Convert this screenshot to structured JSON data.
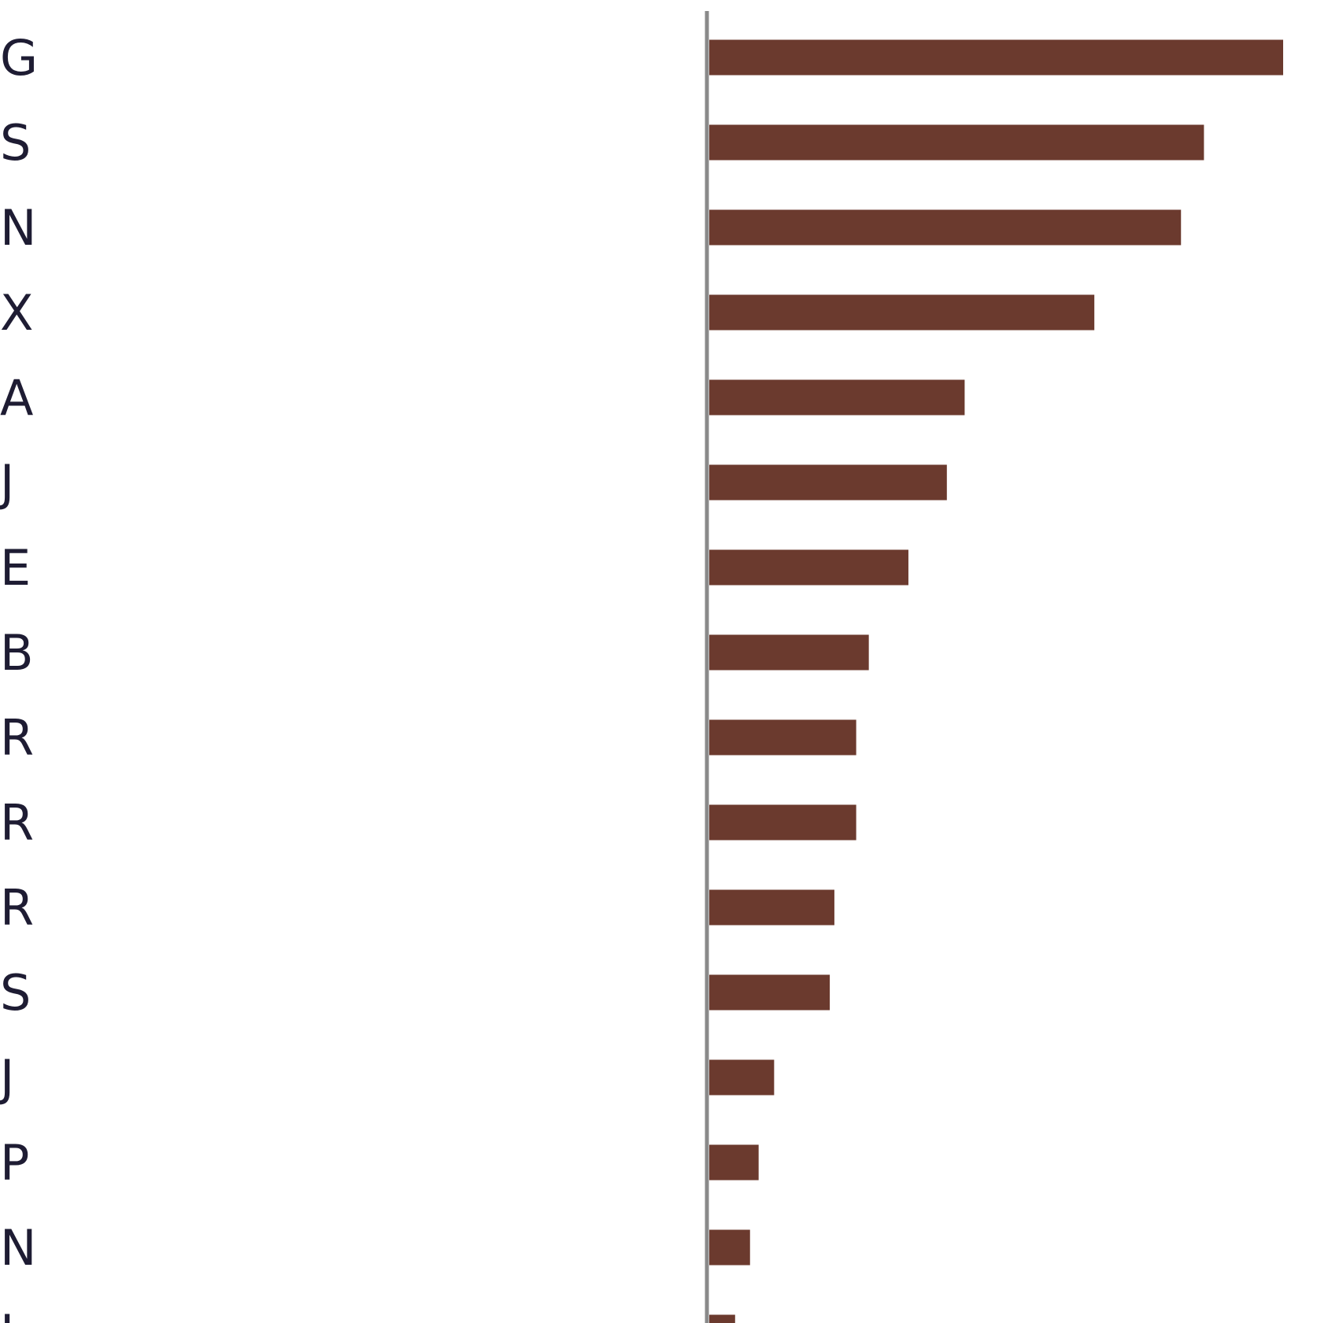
{
  "chart_data": {
    "type": "bar",
    "orientation": "horizontal",
    "categories": [
      "G",
      "S",
      "N",
      "X",
      "A",
      "J",
      "E",
      "B",
      "R",
      "R",
      "R",
      "S",
      "J",
      "P",
      "N",
      "J"
    ],
    "values": [
      100,
      86.2,
      82.2,
      67.1,
      44.5,
      41.4,
      34.7,
      27.8,
      25.6,
      25.6,
      21.8,
      21.0,
      11.3,
      8.6,
      7.1,
      4.5
    ],
    "xlim": [
      0,
      100
    ],
    "grid": false,
    "legend": "none",
    "title": "",
    "xlabel": "",
    "ylabel": "",
    "colors": {
      "bar": "#6b3a2e",
      "axis": "#8a8a8a",
      "label": "#1e1c33"
    }
  }
}
